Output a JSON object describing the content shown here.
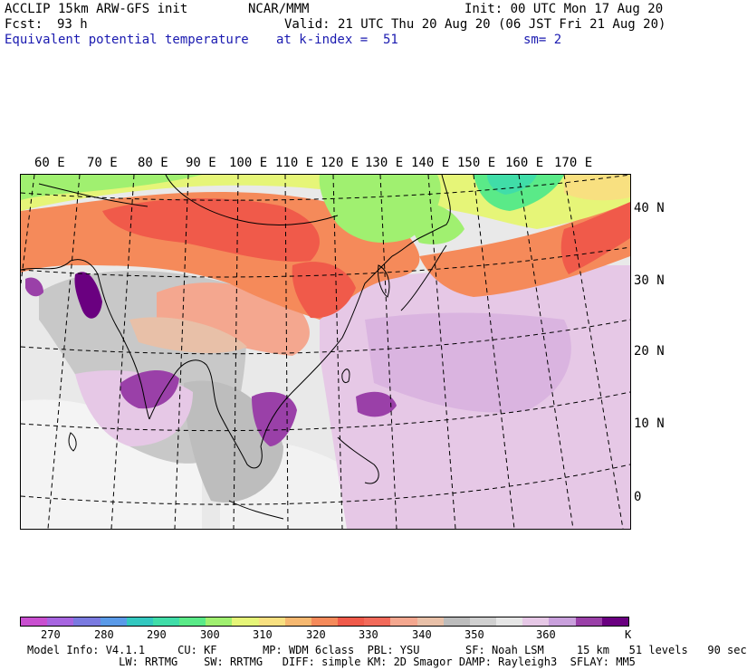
{
  "header": {
    "model": "ACCLIP 15km ARW-GFS init",
    "org": "NCAR/MMM",
    "init": "Init: 00 UTC Mon 17 Aug 20",
    "fcst_label": "Fcst:",
    "fcst_value": "93 h",
    "valid": "Valid: 21 UTC Thu 20 Aug 20 (06 JST Fri 21 Aug 20)",
    "field": "Equivalent potential temperature",
    "level": "at k-index =  51",
    "smoothing": "sm= 2"
  },
  "map": {
    "lon_labels": [
      "60 E",
      "70 E",
      "80 E",
      "90 E",
      "100 E",
      "110 E",
      "120 E",
      "130 E",
      "140 E",
      "150 E",
      "160 E",
      "170 E"
    ],
    "lat_labels": [
      "40 N",
      "30 N",
      "20 N",
      "10 N",
      "0"
    ]
  },
  "colorbar": {
    "colors": [
      "#c94fd0",
      "#a765e0",
      "#7a7ae0",
      "#5a9ae8",
      "#33c8c0",
      "#40dda8",
      "#5aea88",
      "#a0f070",
      "#e6f578",
      "#f8e080",
      "#f6b870",
      "#f58a5a",
      "#f05a4a",
      "#f26a5a",
      "#f4a78f",
      "#e8c0a8",
      "#bcbcbc",
      "#d0d0d0",
      "#e6e6e6",
      "#e6c8e6",
      "#c9a0dc",
      "#9a40a8",
      "#6a0080"
    ],
    "labels": [
      "270",
      "280",
      "290",
      "300",
      "310",
      "320",
      "330",
      "340",
      "350",
      "360"
    ],
    "unit": "K"
  },
  "footer": {
    "line1": "Model Info: V4.1.1     CU: KF       MP: WDM 6class  PBL: YSU       SF: Noah LSM     15 km   51 levels   90 sec",
    "line2": "              LW: RRTMG    SW: RRTMG   DIFF: simple KM: 2D Smagor DAMP: Rayleigh3  SFLAY: MM5"
  }
}
